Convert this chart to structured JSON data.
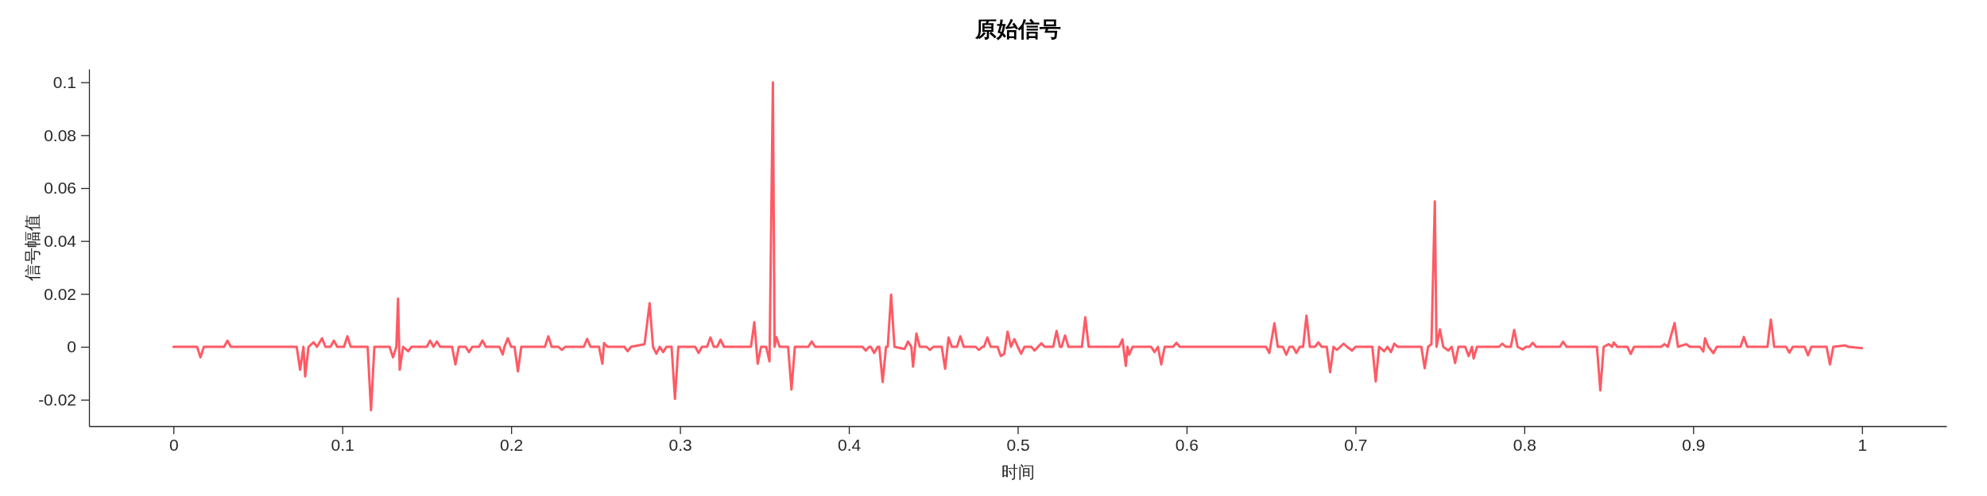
{
  "chart_data": {
    "type": "line",
    "title": "原始信号",
    "xlabel": "时间",
    "ylabel": "信号幅值",
    "xlim": [
      -0.05,
      1.05
    ],
    "ylim": [
      -0.03,
      0.105
    ],
    "xticks": [
      0,
      0.1,
      0.2,
      0.3,
      0.4,
      0.5,
      0.6,
      0.7,
      0.8,
      0.9,
      1
    ],
    "yticks": [
      -0.02,
      0,
      0.02,
      0.04,
      0.06,
      0.08,
      0.1
    ],
    "x": [
      0,
      0.014,
      0.016,
      0.018,
      0.03,
      0.032,
      0.034,
      0.073,
      0.075,
      0.077,
      0.078,
      0.08,
      0.083,
      0.085,
      0.088,
      0.09,
      0.093,
      0.095,
      0.097,
      0.101,
      0.103,
      0.105,
      0.115,
      0.117,
      0.119,
      0.128,
      0.13,
      0.132,
      0.133,
      0.134,
      0.136,
      0.139,
      0.141,
      0.15,
      0.152,
      0.154,
      0.156,
      0.158,
      0.165,
      0.167,
      0.169,
      0.173,
      0.175,
      0.177,
      0.181,
      0.183,
      0.185,
      0.193,
      0.195,
      0.196,
      0.198,
      0.2,
      0.202,
      0.204,
      0.206,
      0.22,
      0.222,
      0.224,
      0.228,
      0.23,
      0.232,
      0.243,
      0.245,
      0.247,
      0.252,
      0.254,
      0.255,
      0.257,
      0.267,
      0.269,
      0.271,
      0.279,
      0.282,
      0.284,
      0.286,
      0.288,
      0.29,
      0.292,
      0.295,
      0.297,
      0.299,
      0.309,
      0.311,
      0.313,
      0.316,
      0.318,
      0.32,
      0.322,
      0.324,
      0.326,
      0.342,
      0.344,
      0.346,
      0.348,
      0.351,
      0.353,
      0.355,
      0.356,
      0.357,
      0.359,
      0.364,
      0.366,
      0.368,
      0.376,
      0.378,
      0.38,
      0.408,
      0.41,
      0.412,
      0.413,
      0.415,
      0.417,
      0.418,
      0.42,
      0.422,
      0.423,
      0.425,
      0.427,
      0.433,
      0.435,
      0.437,
      0.438,
      0.44,
      0.442,
      0.446,
      0.448,
      0.45,
      0.455,
      0.457,
      0.459,
      0.461,
      0.464,
      0.466,
      0.468,
      0.475,
      0.477,
      0.479,
      0.48,
      0.482,
      0.484,
      0.488,
      0.49,
      0.492,
      0.494,
      0.496,
      0.498,
      0.5,
      0.502,
      0.504,
      0.508,
      0.51,
      0.512,
      0.514,
      0.516,
      0.521,
      0.523,
      0.525,
      0.526,
      0.528,
      0.53,
      0.538,
      0.54,
      0.542,
      0.56,
      0.562,
      0.564,
      0.565,
      0.566,
      0.568,
      0.579,
      0.581,
      0.583,
      0.585,
      0.587,
      0.592,
      0.594,
      0.596,
      0.647,
      0.649,
      0.652,
      0.654,
      0.657,
      0.659,
      0.661,
      0.663,
      0.665,
      0.667,
      0.669,
      0.671,
      0.673,
      0.676,
      0.678,
      0.68,
      0.683,
      0.685,
      0.687,
      0.689,
      0.691,
      0.693,
      0.695,
      0.698,
      0.7,
      0.71,
      0.712,
      0.714,
      0.717,
      0.719,
      0.721,
      0.723,
      0.725,
      0.739,
      0.741,
      0.743,
      0.745,
      0.747,
      0.748,
      0.75,
      0.752,
      0.755,
      0.757,
      0.759,
      0.761,
      0.765,
      0.767,
      0.769,
      0.77,
      0.772,
      0.785,
      0.787,
      0.789,
      0.792,
      0.794,
      0.796,
      0.799,
      0.801,
      0.803,
      0.805,
      0.807,
      0.821,
      0.823,
      0.825,
      0.843,
      0.845,
      0.847,
      0.85,
      0.852,
      0.853,
      0.855,
      0.861,
      0.863,
      0.865,
      0.881,
      0.883,
      0.885,
      0.889,
      0.891,
      0.896,
      0.898,
      0.904,
      0.906,
      0.907,
      0.909,
      0.912,
      0.914,
      0.928,
      0.93,
      0.932,
      0.944,
      0.946,
      0.948,
      0.955,
      0.957,
      0.959,
      0.966,
      0.968,
      0.97,
      0.979,
      0.981,
      0.983,
      0.99,
      0.992,
      1.0
    ],
    "series": [
      {
        "color": "#ff5a64",
        "values": [
          0,
          0,
          -0.004,
          0,
          0,
          0.0023,
          0,
          0,
          -0.0087,
          0,
          -0.0112,
          0,
          0.0017,
          0,
          0.0032,
          0,
          0,
          0.0023,
          0,
          0,
          0.004,
          0,
          0,
          -0.024,
          0,
          0,
          -0.004,
          0,
          0.0182,
          -0.0087,
          0,
          -0.0017,
          0,
          0,
          0.0023,
          0,
          0.002,
          0,
          0,
          -0.0067,
          0,
          0,
          -0.002,
          0,
          0,
          0.0024,
          0,
          0,
          -0.0029,
          0,
          0.0032,
          0,
          0,
          -0.0093,
          0,
          0,
          0.004,
          0,
          0,
          -0.0012,
          0,
          0,
          0.003,
          0,
          0,
          -0.0064,
          0.0014,
          0,
          0,
          -0.0017,
          0,
          0.001,
          0.0165,
          0,
          -0.0026,
          0,
          -0.002,
          0,
          0,
          -0.0197,
          0,
          0,
          -0.0023,
          0,
          0,
          0.0035,
          0,
          0,
          0.0027,
          0,
          0,
          0.0093,
          -0.0064,
          0,
          0,
          -0.0055,
          0.1,
          0,
          0.0037,
          0,
          0,
          -0.0162,
          0,
          0,
          0.002,
          0,
          0,
          -0.0014,
          0,
          0,
          -0.0023,
          0,
          0,
          -0.0133,
          0,
          0,
          0.0197,
          0,
          -0.0008,
          0.002,
          0,
          -0.0075,
          0.005,
          0,
          0,
          -0.0012,
          0,
          0,
          -0.0083,
          0.0035,
          0,
          0,
          0.004,
          0,
          0,
          -0.0012,
          0,
          0,
          0.0035,
          0,
          0,
          -0.0035,
          -0.0026,
          0.0057,
          0,
          0.0029,
          0,
          -0.0026,
          0,
          0,
          -0.0014,
          0,
          0.0013,
          0,
          0,
          0.006,
          0,
          0,
          0.0043,
          0,
          0,
          0.0112,
          0,
          0,
          0.0028,
          -0.0072,
          0,
          -0.003,
          0,
          0,
          -0.002,
          0,
          -0.0067,
          0,
          0,
          0.0015,
          0,
          0,
          -0.0023,
          0.0089,
          0,
          0,
          -0.003,
          0,
          0,
          -0.0023,
          0,
          0,
          0.0118,
          0,
          0,
          0.0017,
          0,
          0,
          -0.0096,
          0,
          -0.0012,
          0,
          0.0012,
          0,
          -0.0014,
          0,
          0,
          -0.0131,
          0,
          -0.0017,
          0,
          -0.002,
          0.0012,
          0,
          0,
          -0.0081,
          0,
          0.001,
          0.055,
          0,
          0.0066,
          0,
          -0.0014,
          0,
          -0.0061,
          0,
          0,
          -0.0035,
          0,
          -0.0044,
          0,
          0,
          0.0012,
          0,
          0,
          0.0064,
          0,
          -0.001,
          0,
          0,
          0.0015,
          0,
          0,
          0.0019,
          0,
          0,
          -0.0165,
          0,
          0.001,
          0,
          0.0016,
          0,
          0,
          -0.0027,
          0,
          0,
          0.001,
          0,
          0.009,
          0,
          0.001,
          0,
          0,
          -0.0018,
          0.0032,
          0,
          -0.0024,
          0,
          0,
          0.0037,
          0,
          0,
          0.0103,
          0,
          0,
          -0.0022,
          0,
          0,
          -0.0032,
          0,
          0,
          -0.0067,
          0,
          0.0005,
          0,
          -0.0005
        ]
      }
    ]
  }
}
